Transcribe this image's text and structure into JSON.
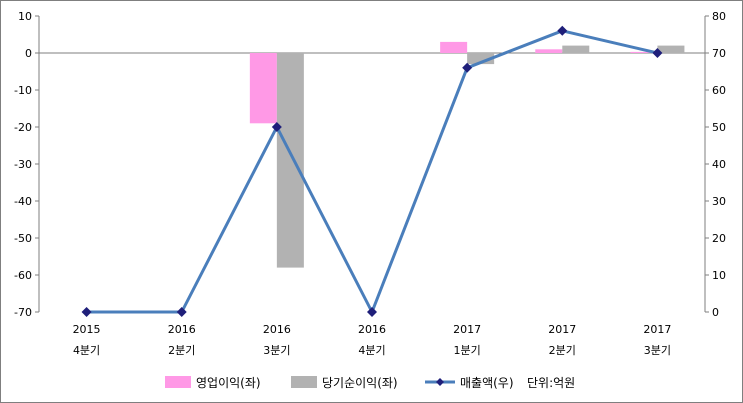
{
  "chart_data": {
    "type": "bar+line",
    "categories": [
      {
        "year": "2015",
        "quarter": "4분기"
      },
      {
        "year": "2016",
        "quarter": "2분기"
      },
      {
        "year": "2016",
        "quarter": "3분기"
      },
      {
        "year": "2016",
        "quarter": "4분기"
      },
      {
        "year": "2017",
        "quarter": "1분기"
      },
      {
        "year": "2017",
        "quarter": "2분기"
      },
      {
        "year": "2017",
        "quarter": "3분기"
      }
    ],
    "series": [
      {
        "name": "영업이익(좌)",
        "type": "bar",
        "axis": "left",
        "color": "#ff99e6",
        "values": [
          0,
          0,
          -19,
          0,
          3,
          1,
          0.3
        ]
      },
      {
        "name": "당기순이익(좌)",
        "type": "bar",
        "axis": "left",
        "color": "#b2b2b2",
        "values": [
          0,
          0,
          -58,
          0,
          -3,
          2,
          2
        ]
      },
      {
        "name": "매출액(우)",
        "type": "line",
        "axis": "right",
        "color": "#4a7ebb",
        "marker_color": "#1f1f7a",
        "values": [
          0,
          0,
          50,
          0,
          66,
          76,
          70
        ]
      }
    ],
    "y_left": {
      "min": -70,
      "max": 10,
      "ticks": [
        10,
        0,
        -10,
        -20,
        -30,
        -40,
        -50,
        -60,
        -70
      ]
    },
    "y_right": {
      "min": 0,
      "max": 80,
      "ticks": [
        80,
        70,
        60,
        50,
        40,
        30,
        20,
        10,
        0
      ]
    },
    "zero_line_left": 0,
    "unit_note": "단위:억원",
    "legend_position": "bottom",
    "grid": false
  }
}
